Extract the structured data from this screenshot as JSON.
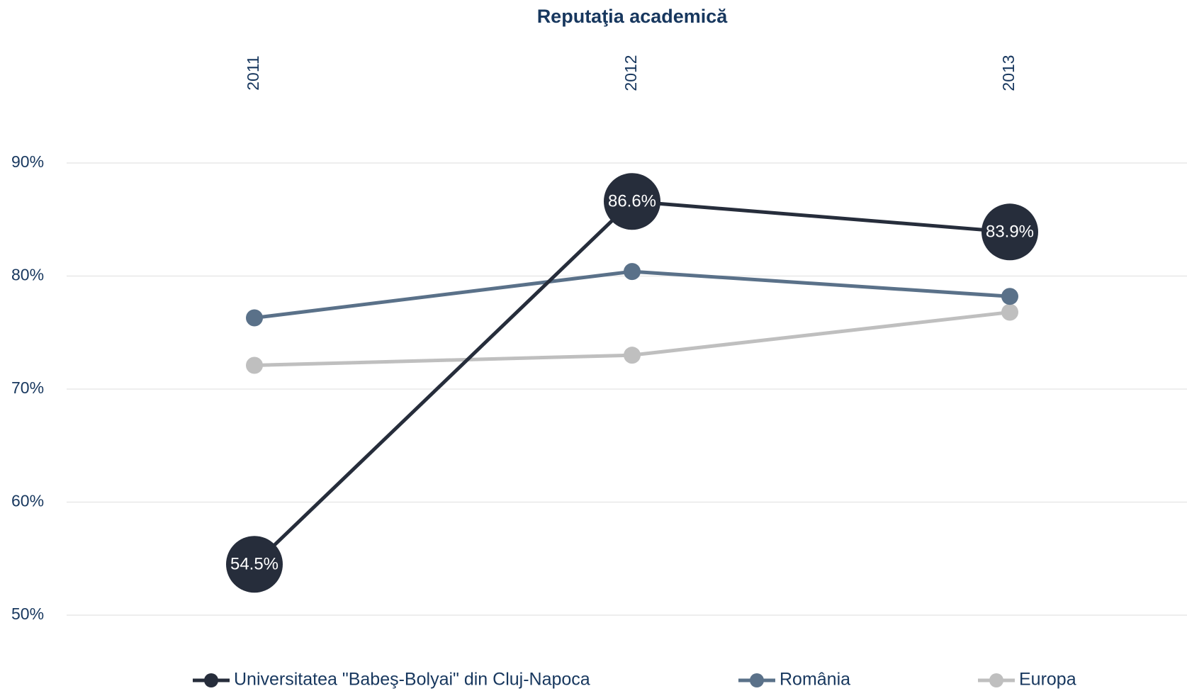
{
  "chart_data": {
    "type": "line",
    "title": "Reputaţia academică",
    "categories": [
      "2011",
      "2012",
      "2013"
    ],
    "series": [
      {
        "name": "Universitatea \"Babeş-Bolyai\" din Cluj-Napoca",
        "color": "#262d3b",
        "values": [
          54.5,
          86.6,
          83.9
        ],
        "value_labels": [
          "54.5%",
          "86.6%",
          "83.9%"
        ]
      },
      {
        "name": "România",
        "color": "#5a7189",
        "values": [
          76.3,
          80.4,
          78.2
        ]
      },
      {
        "name": "Europa",
        "color": "#bfbfbf",
        "values": [
          72.1,
          73.0,
          76.8
        ]
      }
    ],
    "ylim": [
      50,
      90
    ],
    "yticks": [
      {
        "value": 50,
        "label": "50%"
      },
      {
        "value": 60,
        "label": "60%"
      },
      {
        "value": 70,
        "label": "70%"
      },
      {
        "value": 80,
        "label": "80%"
      },
      {
        "value": 90,
        "label": "90%"
      }
    ],
    "grid": true,
    "legend": "bottom"
  }
}
